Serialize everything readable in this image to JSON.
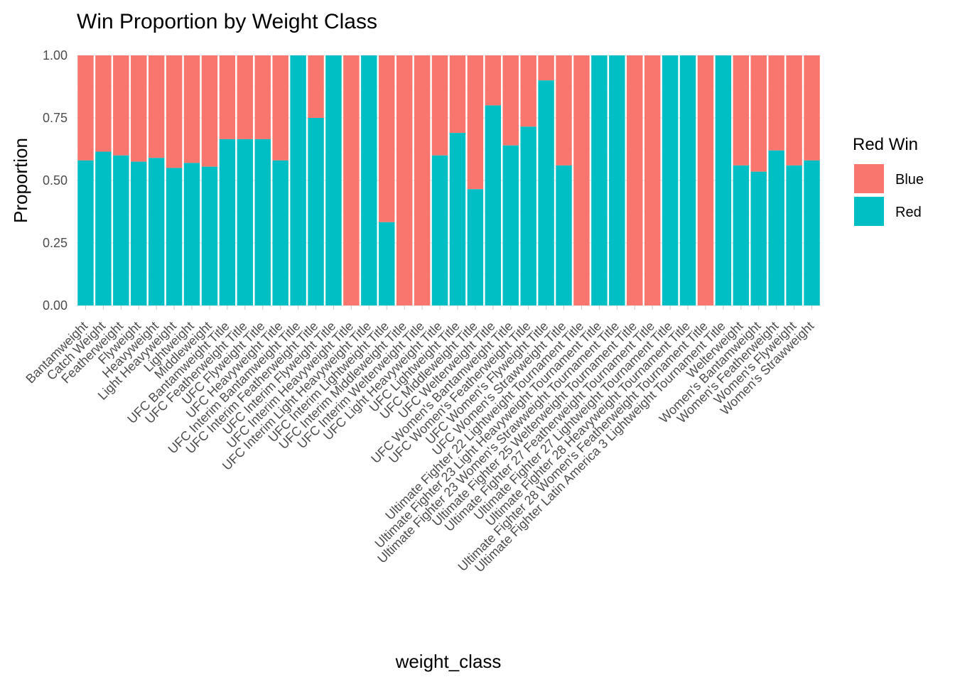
{
  "chart_data": {
    "type": "bar",
    "stacked": true,
    "title": "Win Proportion by Weight Class",
    "xlabel": "weight_class",
    "ylabel": "Proportion",
    "ylim": [
      0,
      1
    ],
    "yticks": [
      "0.00",
      "0.25",
      "0.50",
      "0.75",
      "1.00"
    ],
    "grid": true,
    "legend": {
      "title": "Red Win",
      "position": "right",
      "entries": [
        {
          "name": "Blue",
          "color": "#F8766D"
        },
        {
          "name": "Red",
          "color": "#00BFC4"
        }
      ]
    },
    "categories": [
      "Bantamweight",
      "Catch Weight",
      "Featherweight",
      "Flyweight",
      "Heavyweight",
      "Light Heavyweight",
      "Lightweight",
      "Middleweight",
      "UFC Bantamweight Title",
      "UFC Featherweight Title",
      "UFC Flyweight Title",
      "UFC Heavyweight Title",
      "UFC Interim Bantamweight Title",
      "UFC Interim Featherweight Title",
      "UFC Interim Flyweight Title",
      "UFC Interim Heavyweight Title",
      "UFC Interim Light Heavyweight Title",
      "UFC Interim Lightweight Title",
      "UFC Interim Middleweight Title",
      "UFC Interim Welterweight Title",
      "UFC Light Heavyweight Title",
      "UFC Lightweight Title",
      "UFC Middleweight Title",
      "UFC Welterweight Title",
      "UFC Women's Bantamweight Title",
      "UFC Women's Featherweight Title",
      "UFC Women's Flyweight Title",
      "UFC Women's Strawweight Title",
      "Ultimate Fighter 22 Lightweight Tournament Title",
      "Ultimate Fighter 23 Light Heavyweight Tournament Title",
      "Ultimate Fighter 23 Women's Strawweight Tournament Title",
      "Ultimate Fighter 25 Welterweight Tournament Title",
      "Ultimate Fighter 27 Featherweight Tournament Title",
      "Ultimate Fighter 27 Lightweight Tournament Title",
      "Ultimate Fighter 28 Heavyweight Tournament Title",
      "Ultimate Fighter 28 Women's Featherweight Tournament Title",
      "Ultimate Fighter Latin America 3 Lightweight Tournament Title",
      "Welterweight",
      "Women's Bantamweight",
      "Women's Featherweight",
      "Women's Flyweight",
      "Women's Strawweight"
    ],
    "series": [
      {
        "name": "Red",
        "values": [
          0.58,
          0.615,
          0.6,
          0.575,
          0.59,
          0.55,
          0.57,
          0.555,
          0.665,
          0.665,
          0.665,
          0.58,
          1.0,
          0.75,
          1.0,
          0.0,
          1.0,
          0.333,
          0.0,
          0.0,
          0.6,
          0.69,
          0.465,
          0.8,
          0.64,
          0.715,
          0.9,
          0.56,
          0.0,
          1.0,
          1.0,
          0.0,
          0.0,
          1.0,
          1.0,
          0.0,
          1.0,
          0.56,
          0.535,
          0.62,
          0.56,
          0.58
        ]
      },
      {
        "name": "Blue",
        "values": [
          0.42,
          0.385,
          0.4,
          0.425,
          0.41,
          0.45,
          0.43,
          0.445,
          0.335,
          0.335,
          0.335,
          0.42,
          0.0,
          0.25,
          0.0,
          1.0,
          0.0,
          0.667,
          1.0,
          1.0,
          0.4,
          0.31,
          0.535,
          0.2,
          0.36,
          0.285,
          0.1,
          0.44,
          1.0,
          0.0,
          0.0,
          1.0,
          1.0,
          0.0,
          0.0,
          1.0,
          0.0,
          0.44,
          0.465,
          0.38,
          0.44,
          0.42
        ]
      }
    ]
  }
}
